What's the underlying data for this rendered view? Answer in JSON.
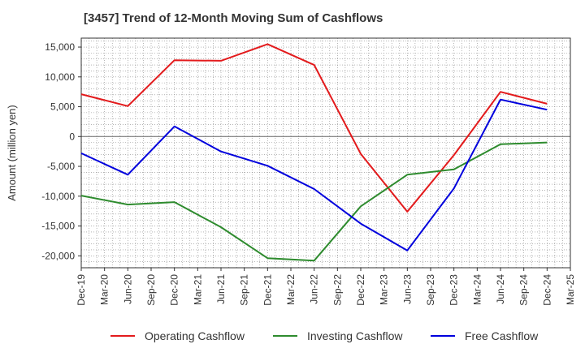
{
  "chart_data": {
    "type": "line",
    "title": "[3457]  Trend of 12-Month Moving Sum of Cashflows",
    "xlabel": "",
    "ylabel": "Amount (million yen)",
    "x": [
      "Dec-19",
      "Mar-20",
      "Jun-20",
      "Sep-20",
      "Dec-20",
      "Mar-21",
      "Jun-21",
      "Sep-21",
      "Dec-21",
      "Mar-22",
      "Jun-22",
      "Sep-22",
      "Dec-22",
      "Mar-23",
      "Jun-23",
      "Sep-23",
      "Dec-23",
      "Mar-24",
      "Jun-24",
      "Sep-24",
      "Dec-24",
      "Mar-25"
    ],
    "ylim": [
      -22000,
      16500
    ],
    "yticks": [
      15000,
      10000,
      5000,
      0,
      -5000,
      -10000,
      -15000,
      -20000
    ],
    "ytick_labels": [
      "15,000",
      "10,000",
      "5,000",
      "0",
      "-5,000",
      "-10,000",
      "-15,000",
      "-20,000"
    ],
    "grid": true,
    "legend_position": "bottom",
    "series": [
      {
        "name": "Operating Cashflow",
        "color": "#e31a1c",
        "points": [
          [
            0,
            7100
          ],
          [
            2,
            5100
          ],
          [
            4,
            12800
          ],
          [
            6,
            12700
          ],
          [
            8,
            15500
          ],
          [
            10,
            12000
          ],
          [
            12,
            -2900
          ],
          [
            14,
            -12600
          ],
          [
            16,
            -3100
          ],
          [
            18,
            7500
          ],
          [
            20,
            5500
          ]
        ]
      },
      {
        "name": "Investing Cashflow",
        "color": "#2e8b2e",
        "points": [
          [
            0,
            -9900
          ],
          [
            2,
            -11400
          ],
          [
            4,
            -11000
          ],
          [
            6,
            -15200
          ],
          [
            8,
            -20400
          ],
          [
            10,
            -20800
          ],
          [
            12,
            -11700
          ],
          [
            14,
            -6400
          ],
          [
            16,
            -5500
          ],
          [
            18,
            -1300
          ],
          [
            20,
            -1000
          ]
        ]
      },
      {
        "name": "Free Cashflow",
        "color": "#0000dd",
        "points": [
          [
            0,
            -2800
          ],
          [
            2,
            -6400
          ],
          [
            4,
            1700
          ],
          [
            6,
            -2500
          ],
          [
            8,
            -4900
          ],
          [
            10,
            -8800
          ],
          [
            12,
            -14600
          ],
          [
            14,
            -19100
          ],
          [
            16,
            -8700
          ],
          [
            18,
            6200
          ],
          [
            20,
            4500
          ]
        ]
      }
    ]
  }
}
